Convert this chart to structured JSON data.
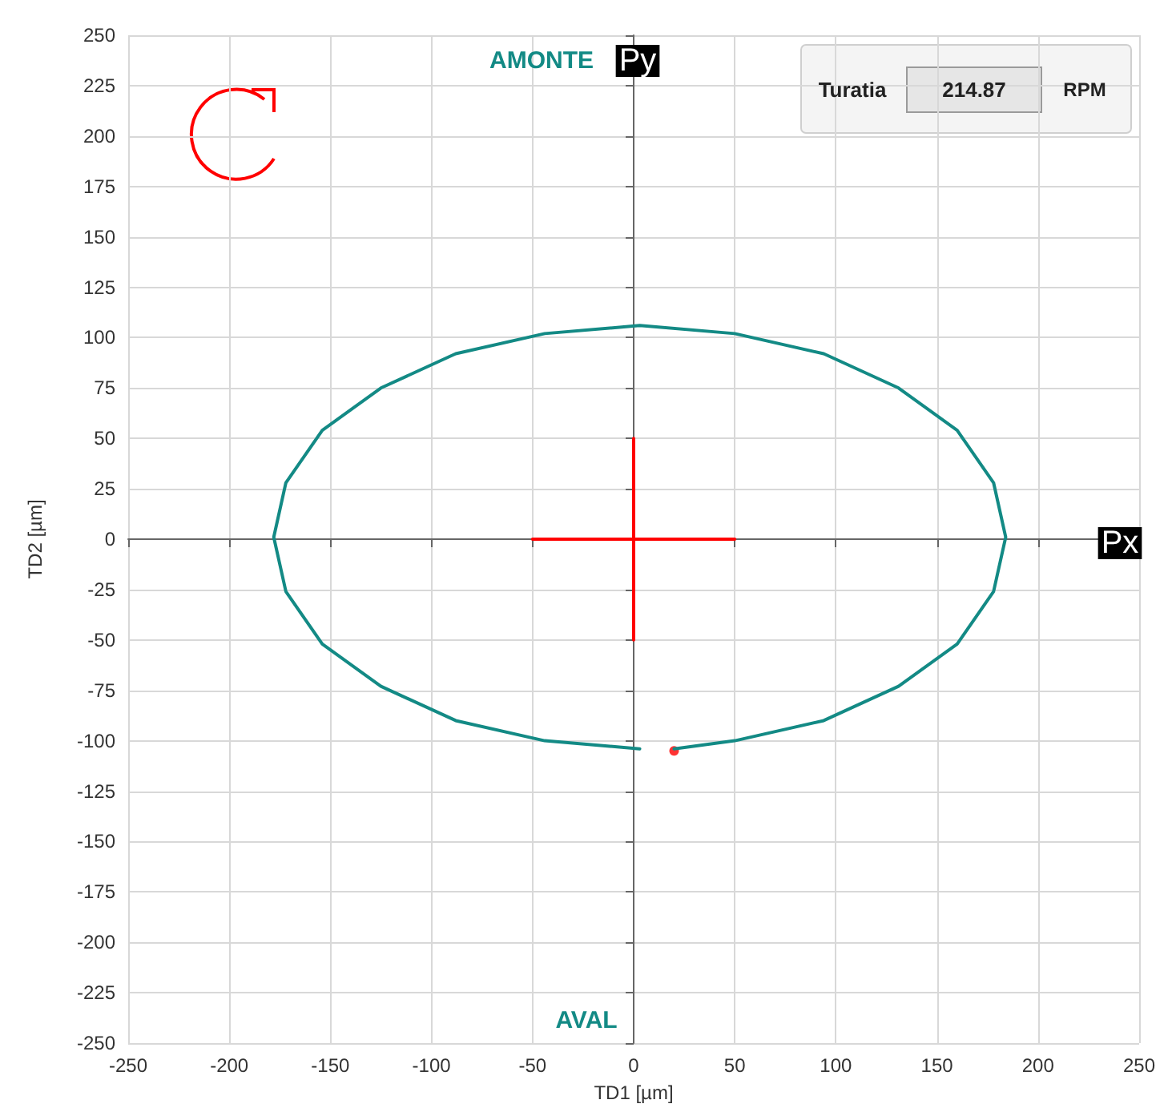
{
  "chart_data": {
    "type": "line",
    "xlabel": "TD1 [µm]",
    "ylabel": "TD2 [µm]",
    "xlim": [
      -250,
      250
    ],
    "xticks": [
      -250,
      -200,
      -150,
      -100,
      -50,
      0,
      50,
      100,
      150,
      200,
      250
    ],
    "ylim": [
      -250,
      250
    ],
    "yticks": [
      -250,
      -225,
      -200,
      -175,
      -150,
      -125,
      -100,
      -75,
      -50,
      -25,
      0,
      25,
      50,
      75,
      100,
      125,
      150,
      175,
      200,
      225,
      250
    ],
    "grid": true,
    "marker": "none",
    "line_style": "solid",
    "series": [
      {
        "color": "#138a85",
        "x": [
          20,
          50,
          94,
          131,
          160,
          178,
          184,
          178,
          160,
          131,
          94,
          50,
          3,
          -44,
          -88,
          -125,
          -154,
          -172,
          -178,
          -172,
          -154,
          -125,
          -88,
          -44,
          3
        ],
        "values": [
          -104,
          -100,
          -90,
          -73,
          -52,
          -26,
          1,
          28,
          54,
          75,
          92,
          102,
          106,
          102,
          92,
          75,
          54,
          28,
          1,
          -26,
          -52,
          -73,
          -90,
          -100,
          -104
        ]
      },
      {
        "color": "#ff0000",
        "x": [
          -50,
          50
        ],
        "values": [
          0,
          0
        ]
      },
      {
        "color": "#ff0000",
        "x": [
          0,
          0
        ],
        "values": [
          -50,
          50
        ]
      },
      {
        "type": "scatter",
        "marker": "circle",
        "color": "#ff0000",
        "x": [
          20
        ],
        "values": [
          -105
        ]
      }
    ],
    "annotations": [
      "AMONTE",
      "Py",
      "Px",
      "AVAL",
      "Turatia",
      "214.87",
      "RPM"
    ]
  }
}
